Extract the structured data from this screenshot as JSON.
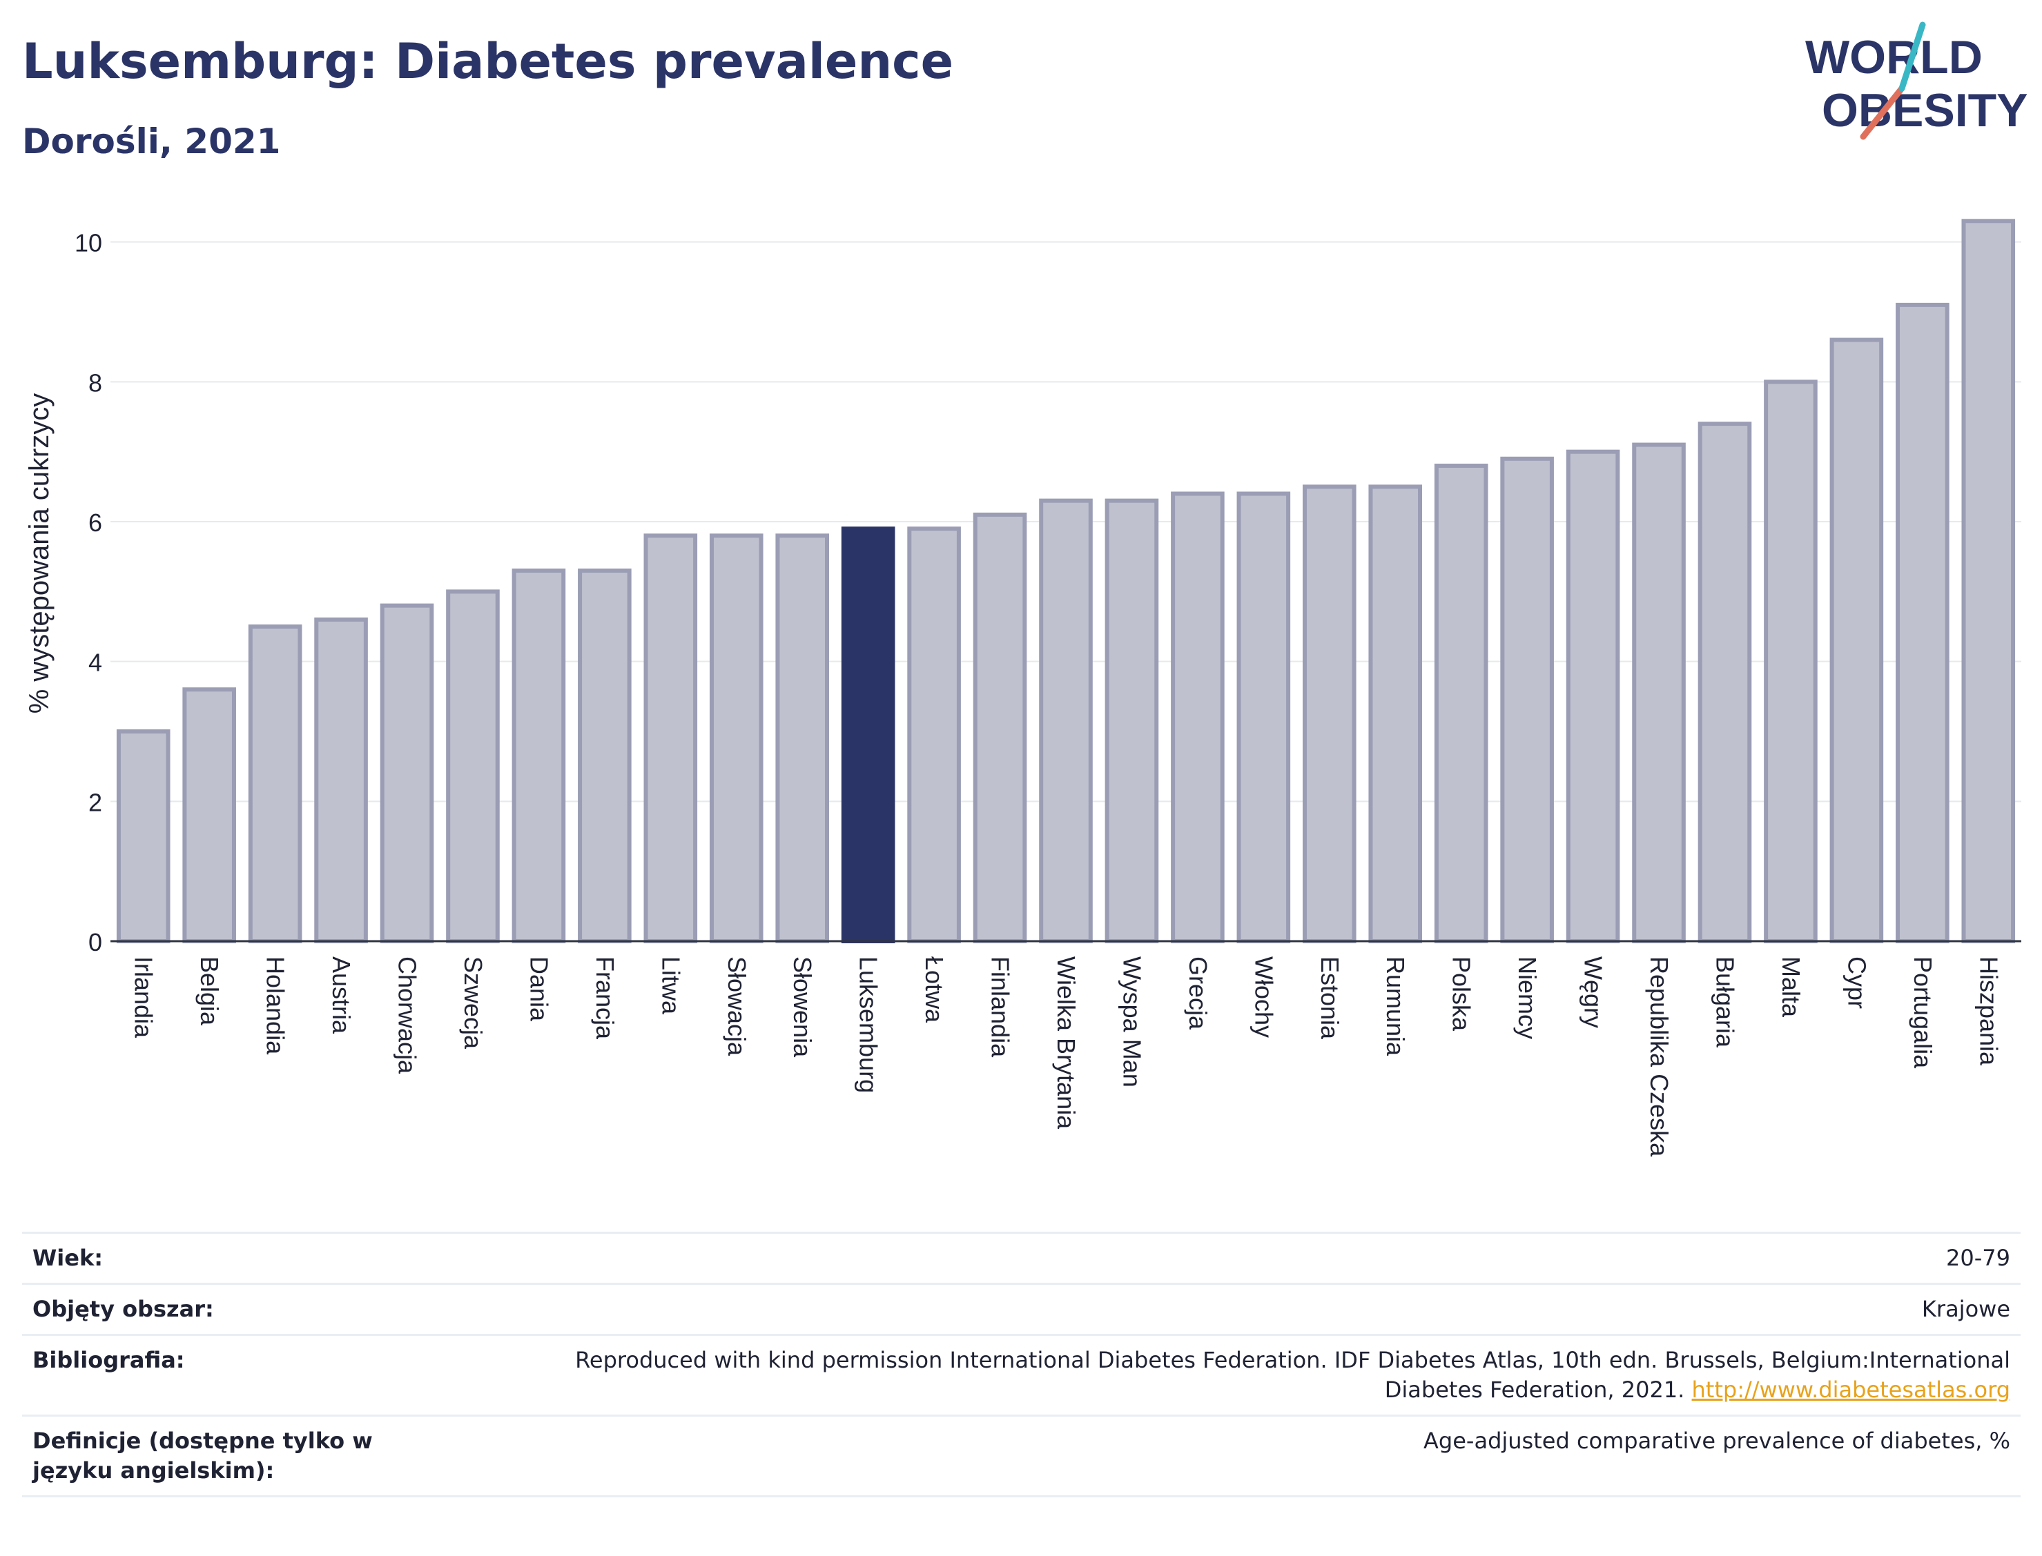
{
  "header": {
    "title": "Luksemburg: Diabetes prevalence",
    "subtitle": "Dorośli, 2021"
  },
  "logo": {
    "line1": "WORLD",
    "line2": "OBESITY",
    "accent": "#e0705c",
    "accent2": "#3ab7c4",
    "color": "#2b3467"
  },
  "colors": {
    "highlight": "#2b3467",
    "bar": "#bfc1cf",
    "bar_border": "#9a9db4",
    "grid": "#e6e9ee",
    "axis": "#2f3542"
  },
  "chart_data": {
    "type": "bar",
    "categories": [
      "Irlandia",
      "Belgia",
      "Holandia",
      "Austria",
      "Chorwacja",
      "Szwecja",
      "Dania",
      "Francja",
      "Litwa",
      "Słowacja",
      "Słowenia",
      "Luksemburg",
      "Łotwa",
      "Finlandia",
      "Wielka Brytania",
      "Wyspa Man",
      "Grecja",
      "Włochy",
      "Estonia",
      "Rumunia",
      "Polska",
      "Niemcy",
      "Węgry",
      "Republika Czeska",
      "Bułgaria",
      "Malta",
      "Cypr",
      "Portugalia",
      "Hiszpania"
    ],
    "values": [
      3.0,
      3.6,
      4.5,
      4.6,
      4.8,
      5.0,
      5.3,
      5.3,
      5.8,
      5.8,
      5.8,
      5.9,
      5.9,
      6.1,
      6.3,
      6.3,
      6.4,
      6.4,
      6.5,
      6.5,
      6.8,
      6.9,
      7.0,
      7.1,
      7.4,
      8.0,
      8.6,
      9.1,
      10.3
    ],
    "highlight": "Luksemburg",
    "ylabel": "% występowania cukrzycy",
    "yticks": [
      0,
      2,
      4,
      6,
      8,
      10
    ],
    "ylim": [
      0,
      10.5
    ],
    "grid": true
  },
  "meta": [
    {
      "label": "Wiek:",
      "value": "20-79"
    },
    {
      "label": "Objęty obszar:",
      "value": "Krajowe"
    },
    {
      "label": "Bibliografia:",
      "value": "Reproduced with kind permission International Diabetes Federation.  IDF Diabetes Atlas, 10th edn. Brussels, Belgium:International Diabetes Federation, 2021.",
      "link": "http://www.diabetesatlas.org"
    },
    {
      "label": "Definicje (dostępne tylko w języku angielskim):",
      "value": "Age-adjusted comparative prevalence of diabetes, %"
    }
  ]
}
